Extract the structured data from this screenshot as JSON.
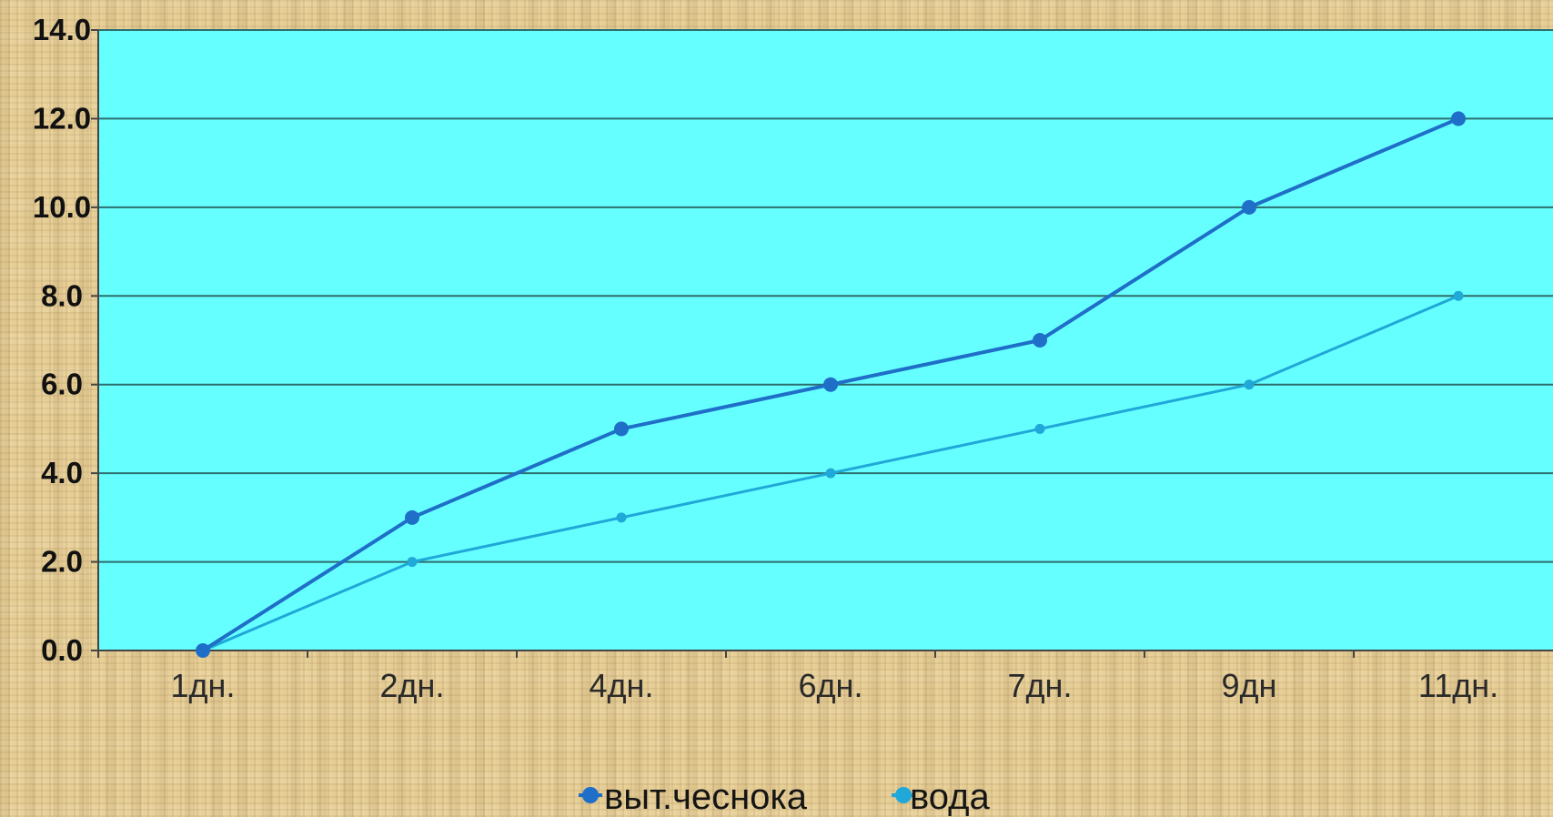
{
  "chart_data": {
    "type": "line",
    "title": "",
    "xlabel": "",
    "ylabel": "",
    "categories": [
      "1дн.",
      "2дн.",
      "4дн.",
      "6дн.",
      "7дн.",
      "9дн",
      "11дн."
    ],
    "series": [
      {
        "name": "выт.чеснока",
        "values": [
          0,
          3,
          5,
          6,
          7,
          10,
          12
        ],
        "color": "#1f6fc8"
      },
      {
        "name": "вода",
        "values": [
          0,
          2,
          3,
          4,
          5,
          6,
          8
        ],
        "color": "#1fa8d8"
      }
    ],
    "ylim": [
      0,
      14
    ],
    "yticks": [
      "0.0",
      "2.0",
      "4.0",
      "6.0",
      "8.0",
      "10.0",
      "12.0",
      "14.0"
    ],
    "ytick_values": [
      0,
      2,
      4,
      6,
      8,
      10,
      12,
      14
    ],
    "grid": "horizontal",
    "legend_position": "bottom",
    "plot_background": "#66ffff",
    "page_background": "#e6cd95"
  }
}
